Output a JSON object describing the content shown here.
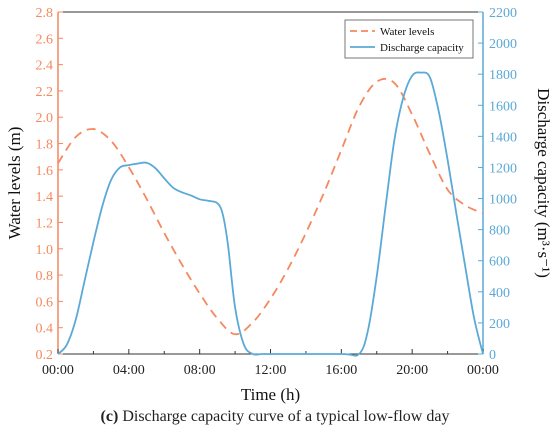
{
  "caption": {
    "prefix": "(c)",
    "text": "Discharge capacity curve of a typical low-flow day"
  },
  "chart_data": {
    "type": "line",
    "xlabel": "Time (h)",
    "x_ticks": [
      "00:00",
      "04:00",
      "08:00",
      "12:00",
      "16:00",
      "20:00",
      "00:00"
    ],
    "xlim": [
      0,
      24
    ],
    "left_axis": {
      "label": "Water levels (m)",
      "ylim": [
        0.2,
        2.8
      ],
      "ticks": [
        0.2,
        0.4,
        0.6,
        0.8,
        1.0,
        1.2,
        1.4,
        1.6,
        1.8,
        2.0,
        2.2,
        2.4,
        2.6,
        2.8
      ],
      "color": "#F4895F"
    },
    "right_axis": {
      "label": "Discharge capacity (m³·s⁻¹)",
      "ylim": [
        0,
        2200
      ],
      "ticks": [
        0,
        200,
        400,
        600,
        800,
        1000,
        1200,
        1400,
        1600,
        1800,
        2000,
        2200
      ],
      "color": "#5BA9D6"
    },
    "legend_position": "top-right",
    "series": [
      {
        "name": "Water levels",
        "axis": "left",
        "style": "dashed",
        "color": "#F4895F",
        "x": [
          0,
          1,
          2,
          3,
          4,
          5,
          6,
          7,
          8,
          9,
          10,
          11,
          12,
          13,
          14,
          15,
          16,
          17,
          18,
          19,
          20,
          21,
          22,
          23,
          24
        ],
        "y": [
          1.65,
          1.85,
          1.91,
          1.82,
          1.62,
          1.38,
          1.12,
          0.88,
          0.66,
          0.47,
          0.35,
          0.44,
          0.62,
          0.85,
          1.12,
          1.42,
          1.75,
          2.08,
          2.27,
          2.26,
          2.02,
          1.72,
          1.45,
          1.33,
          1.27
        ]
      },
      {
        "name": "Discharge capacity",
        "axis": "right",
        "style": "solid",
        "color": "#5BA9D6",
        "x": [
          0,
          0.5,
          1,
          1.5,
          2,
          2.5,
          3,
          3.5,
          4,
          4.5,
          5,
          5.5,
          6,
          6.5,
          7,
          7.5,
          8,
          8.5,
          9,
          9.3,
          9.6,
          10,
          10.5,
          11,
          11.5,
          12,
          16,
          17,
          17.5,
          18,
          18.5,
          19,
          19.5,
          20,
          20.5,
          21,
          21.5,
          22,
          22.5,
          23,
          23.5,
          24
        ],
        "y": [
          0,
          60,
          220,
          470,
          720,
          950,
          1120,
          1200,
          1215,
          1225,
          1230,
          1195,
          1130,
          1070,
          1040,
          1020,
          995,
          985,
          970,
          900,
          700,
          300,
          60,
          0,
          0,
          0,
          0,
          0,
          150,
          500,
          950,
          1380,
          1650,
          1790,
          1810,
          1780,
          1560,
          1250,
          900,
          560,
          230,
          0
        ]
      }
    ]
  }
}
